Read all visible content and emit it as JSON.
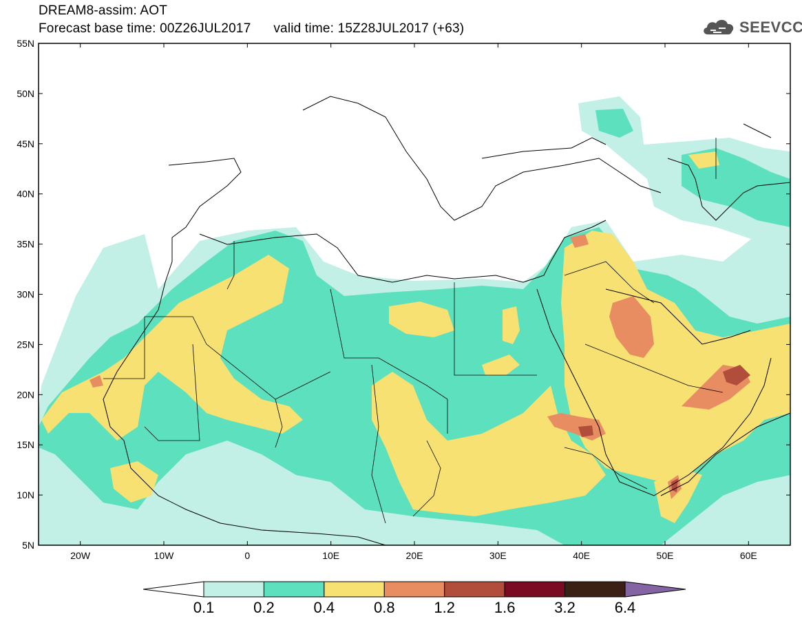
{
  "header": {
    "line1": "DREAM8-assim: AOT",
    "base_time_label": "Forecast base time:",
    "base_time": "00Z26JUL2017",
    "valid_time_label": "valid time:",
    "valid_time": "15Z28JUL2017 (+63)"
  },
  "logo": {
    "text": "SEEVCCC",
    "icon": "cloud-icon"
  },
  "map": {
    "projection": "lat-lon",
    "lon_range": [
      -25,
      65
    ],
    "lat_range": [
      5,
      55
    ],
    "lat_labels": [
      "55N",
      "50N",
      "45N",
      "40N",
      "35N",
      "30N",
      "25N",
      "20N",
      "15N",
      "10N",
      "5N"
    ],
    "lon_labels": [
      "20W",
      "10W",
      "0",
      "10E",
      "20E",
      "30E",
      "40E",
      "50E",
      "60E"
    ],
    "variable": "AOT"
  },
  "colorbar": {
    "labels": [
      "0.1",
      "0.2",
      "0.4",
      "0.8",
      "1.2",
      "1.6",
      "3.2",
      "6.4"
    ],
    "colors": [
      "#ffffff",
      "#c2efe6",
      "#5ce0bd",
      "#f6e172",
      "#e88c62",
      "#b14e3b",
      "#7a0b22",
      "#3b2113",
      "#8464a2"
    ]
  }
}
